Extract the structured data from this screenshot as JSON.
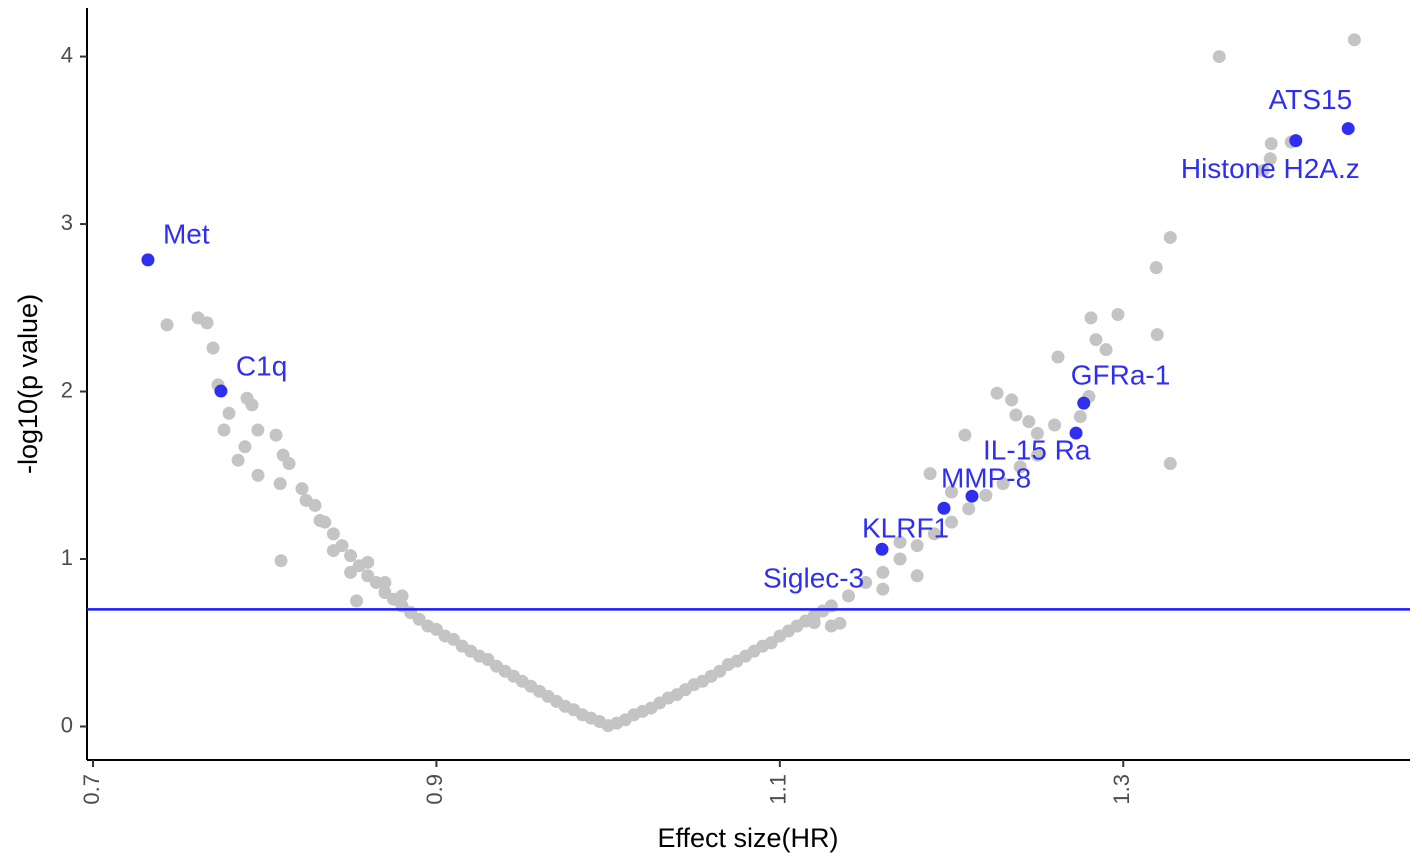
{
  "chart_data": {
    "type": "scatter",
    "x_label": "Effect size(HR)",
    "y_label": "-log10(p value)",
    "xlim": [
      0.6965,
      1.467
    ],
    "ylim": [
      -0.2,
      4.29
    ],
    "xticks": [
      0.7,
      0.9,
      1.1,
      1.3
    ],
    "yticks": [
      0,
      1,
      2,
      3,
      4
    ],
    "reference_line": {
      "value": 0.699,
      "color": "#1a1aff"
    },
    "series": [
      {
        "color": "#c4c4c4",
        "x": [
          0.7431,
          0.7612,
          0.7664,
          0.7699,
          0.7728,
          0.7792,
          0.7763,
          0.7897,
          0.7926,
          0.7885,
          0.7845,
          0.7961,
          0.796,
          0.8066,
          0.8095,
          0.8107,
          0.8142,
          0.809,
          0.8217,
          0.8241,
          0.8293,
          0.8322,
          0.835,
          0.84,
          0.845,
          0.85,
          0.855,
          0.86,
          0.865,
          0.87,
          0.875,
          0.88,
          0.885,
          0.89,
          0.895,
          0.9,
          0.91,
          0.92,
          0.93,
          0.94,
          0.95,
          0.96,
          0.97,
          0.98,
          0.99,
          1.0,
          0.84,
          0.85,
          0.86,
          0.87,
          0.88,
          0.8535,
          0.905,
          0.915,
          0.925,
          0.935,
          0.945,
          0.955,
          0.965,
          0.975,
          0.985,
          0.995,
          1.01,
          1.02,
          1.03,
          1.04,
          1.05,
          1.06,
          1.07,
          1.08,
          1.09,
          1.1,
          1.11,
          1.12,
          1.13,
          1.14,
          1.15,
          1.16,
          1.17,
          1.18,
          1.19,
          1.2,
          1.21,
          1.22,
          1.23,
          1.24,
          1.25,
          1.005,
          1.015,
          1.025,
          1.035,
          1.045,
          1.055,
          1.065,
          1.075,
          1.085,
          1.095,
          1.105,
          1.115,
          1.125,
          1.12,
          1.13,
          1.135,
          1.16,
          1.18,
          1.17,
          1.1875,
          1.2,
          1.2078,
          1.2265,
          1.2375,
          1.235,
          1.245,
          1.25,
          1.26,
          1.262,
          1.2812,
          1.2841,
          1.29,
          1.2969,
          1.28,
          1.275,
          1.3274,
          1.3198,
          1.3192,
          1.3274,
          1.3559,
          1.4346,
          1.3862,
          1.3978,
          1.3815,
          1.3856
        ],
        "y": [
          2.398,
          2.44,
          2.41,
          2.26,
          2.04,
          1.87,
          1.77,
          1.96,
          1.92,
          1.67,
          1.59,
          1.5,
          1.77,
          1.74,
          0.99,
          1.62,
          1.57,
          1.45,
          1.42,
          1.35,
          1.32,
          1.23,
          1.22,
          1.15,
          1.08,
          1.02,
          0.96,
          0.9,
          0.86,
          0.8,
          0.76,
          0.72,
          0.68,
          0.64,
          0.6,
          0.58,
          0.52,
          0.45,
          0.4,
          0.33,
          0.27,
          0.21,
          0.15,
          0.1,
          0.05,
          0.005,
          1.05,
          0.92,
          0.98,
          0.86,
          0.78,
          0.75,
          0.54,
          0.48,
          0.42,
          0.36,
          0.3,
          0.24,
          0.18,
          0.12,
          0.07,
          0.03,
          0.04,
          0.09,
          0.14,
          0.19,
          0.25,
          0.3,
          0.37,
          0.42,
          0.48,
          0.54,
          0.6,
          0.66,
          0.72,
          0.78,
          0.86,
          0.92,
          1.0,
          1.08,
          1.15,
          1.22,
          1.3,
          1.38,
          1.45,
          1.55,
          1.62,
          0.02,
          0.07,
          0.11,
          0.17,
          0.22,
          0.27,
          0.33,
          0.39,
          0.45,
          0.5,
          0.57,
          0.63,
          0.69,
          0.62,
          0.6,
          0.616,
          0.82,
          0.9,
          1.1,
          1.51,
          1.4,
          1.74,
          1.99,
          1.86,
          1.95,
          1.82,
          1.75,
          1.8,
          2.206,
          2.44,
          2.31,
          2.25,
          2.46,
          1.97,
          1.85,
          1.57,
          2.34,
          2.74,
          2.92,
          4.0,
          4.1,
          3.48,
          3.49,
          3.32,
          3.39
        ]
      },
      {
        "color": "#2f2ff0",
        "x": [
          0.732,
          0.7745,
          1.431,
          1.4005,
          1.277,
          1.2725,
          1.2119,
          1.1956,
          1.1595
        ],
        "y": [
          2.786,
          2.003,
          3.57,
          3.498,
          1.931,
          1.752,
          1.375,
          1.303,
          1.058
        ],
        "labels": [
          "Met",
          "C1q",
          "ATS15",
          "Histone H2A.z",
          "GFRa-1",
          "IL-15 Ra",
          "MMP-8",
          "KLRF1",
          "Siglec-3"
        ]
      }
    ]
  }
}
